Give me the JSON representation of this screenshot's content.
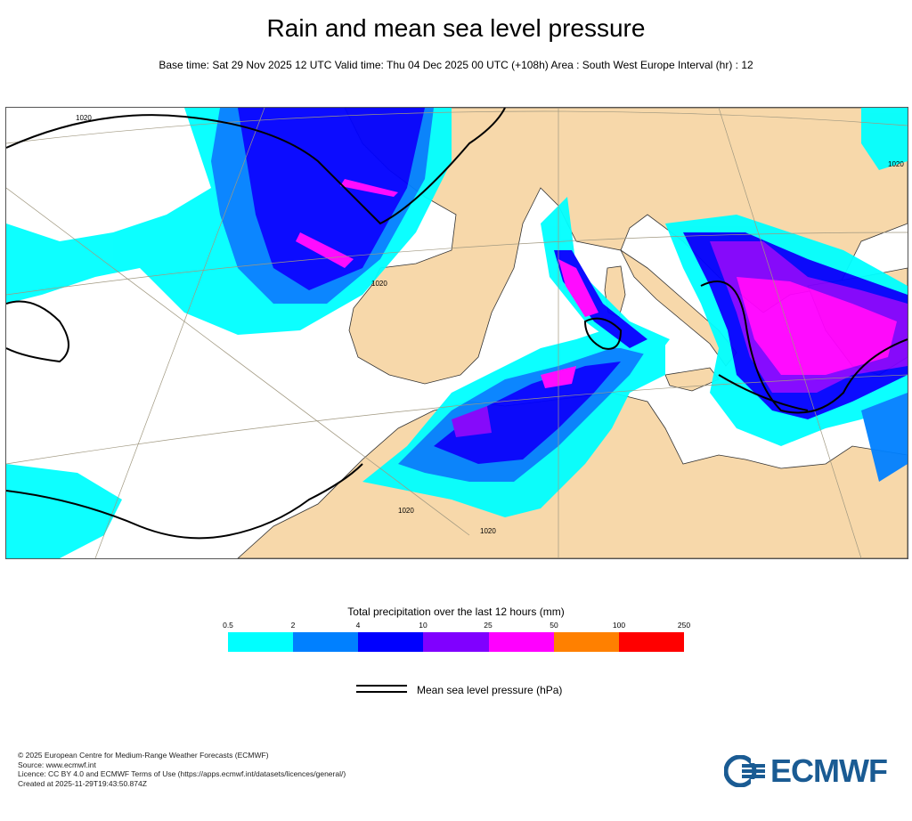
{
  "title": "Rain and mean sea level pressure",
  "subtitle": "Base time: Sat 29 Nov 2025 12 UTC Valid time: Thu 04 Dec 2025 00 UTC (+108h) Area : South West Europe Interval (hr) : 12",
  "map": {
    "isobar_labels": [
      "1020",
      "1020",
      "1020",
      "1020",
      "1020"
    ],
    "colors": {
      "land": "#f7d8aa",
      "sea": "#ffffff",
      "isobar": "#000000",
      "border": "#444444"
    }
  },
  "legend": {
    "title": "Total precipitation over the last 12 hours (mm)",
    "ticks": [
      "0.5",
      "2",
      "4",
      "10",
      "25",
      "50",
      "100",
      "250"
    ],
    "colors": [
      "#00ffff",
      "#0080ff",
      "#0000ff",
      "#8000ff",
      "#ff00ff",
      "#ff8000",
      "#ff0000"
    ]
  },
  "mslp_label": "Mean sea level pressure (hPa)",
  "footer": {
    "line1": "© 2025 European Centre for Medium-Range Weather Forecasts (ECMWF)",
    "line2": "Source: www.ecmwf.int",
    "line3": "Licence: CC BY 4.0 and ECMWF Terms of Use (https://apps.ecmwf.int/datasets/licences/general/)",
    "line4": "Created at 2025-11-29T19:43:50.874Z"
  },
  "logo": {
    "text": "ECMWF",
    "icon": "ecmwf-logo-icon"
  }
}
